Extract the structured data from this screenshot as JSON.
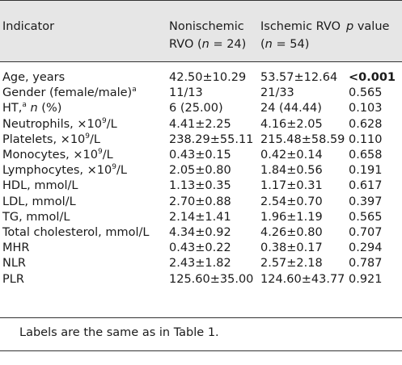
{
  "header": {
    "indicator": "Indicator",
    "nonischemic_line1": "Nonischemic",
    "nonischemic_line2_pre": "RVO (",
    "nonischemic_n": "n",
    "nonischemic_line2_post": " = 24)",
    "ischemic_line1": "Ischemic RVO",
    "ischemic_line2_pre": "(",
    "ischemic_n": "n",
    "ischemic_line2_post": " = 54)",
    "pvalue_p": "p",
    "pvalue_rest": " value"
  },
  "rows": [
    {
      "label": "Age, years",
      "nonischemic": "42.50±10.29",
      "ischemic": "53.57±12.64",
      "p": "<0.001"
    },
    {
      "label_pre": "Gender (female/male)",
      "label_sup": "a",
      "nonischemic": "11/13",
      "ischemic": "21/33",
      "p": "0.565"
    },
    {
      "label_pre": "HT,",
      "label_sup": "a",
      "label_n": "n",
      "label_post": " (%)",
      "nonischemic": "6 (25.00)",
      "ischemic": "24 (44.44)",
      "p": "0.103"
    },
    {
      "label_pre": "Neutrophils, ×10",
      "label_sup": "9",
      "label_post": "/L",
      "nonischemic": "4.41±2.25",
      "ischemic": "4.16±2.05",
      "p": "0.628"
    },
    {
      "label_pre": "Platelets, ×10",
      "label_sup": "9",
      "label_post": "/L",
      "nonischemic": "238.29±55.11",
      "ischemic": "215.48±58.59",
      "p": "0.110"
    },
    {
      "label_pre": "Monocytes, ×10",
      "label_sup": "9",
      "label_post": "/L",
      "nonischemic": "0.43±0.15",
      "ischemic": "0.42±0.14",
      "p": "0.658"
    },
    {
      "label_pre": "Lymphocytes, ×10",
      "label_sup": "9",
      "label_post": "/L",
      "nonischemic": "2.05±0.80",
      "ischemic": "1.84±0.56",
      "p": "0.191"
    },
    {
      "label": "HDL, mmol/L",
      "nonischemic": "1.13±0.35",
      "ischemic": "1.17±0.31",
      "p": "0.617"
    },
    {
      "label": "LDL, mmol/L",
      "nonischemic": "2.70±0.88",
      "ischemic": "2.54±0.70",
      "p": "0.397"
    },
    {
      "label": "TG, mmol/L",
      "nonischemic": "2.14±1.41",
      "ischemic": "1.96±1.19",
      "p": "0.565"
    },
    {
      "label": "Total cholesterol, mmol/L",
      "nonischemic": "4.34±0.92",
      "ischemic": "4.26±0.80",
      "p": "0.707"
    },
    {
      "label": "MHR",
      "nonischemic": "0.43±0.22",
      "ischemic": "0.38±0.17",
      "p": "0.294"
    },
    {
      "label": "NLR",
      "nonischemic": "2.43±1.82",
      "ischemic": "2.57±2.18",
      "p": "0.787"
    },
    {
      "label": "PLR",
      "nonischemic": "125.60±35.00",
      "ischemic": "124.60±43.77",
      "p": "0.921"
    }
  ],
  "footnote": "Labels are the same as in Table 1."
}
